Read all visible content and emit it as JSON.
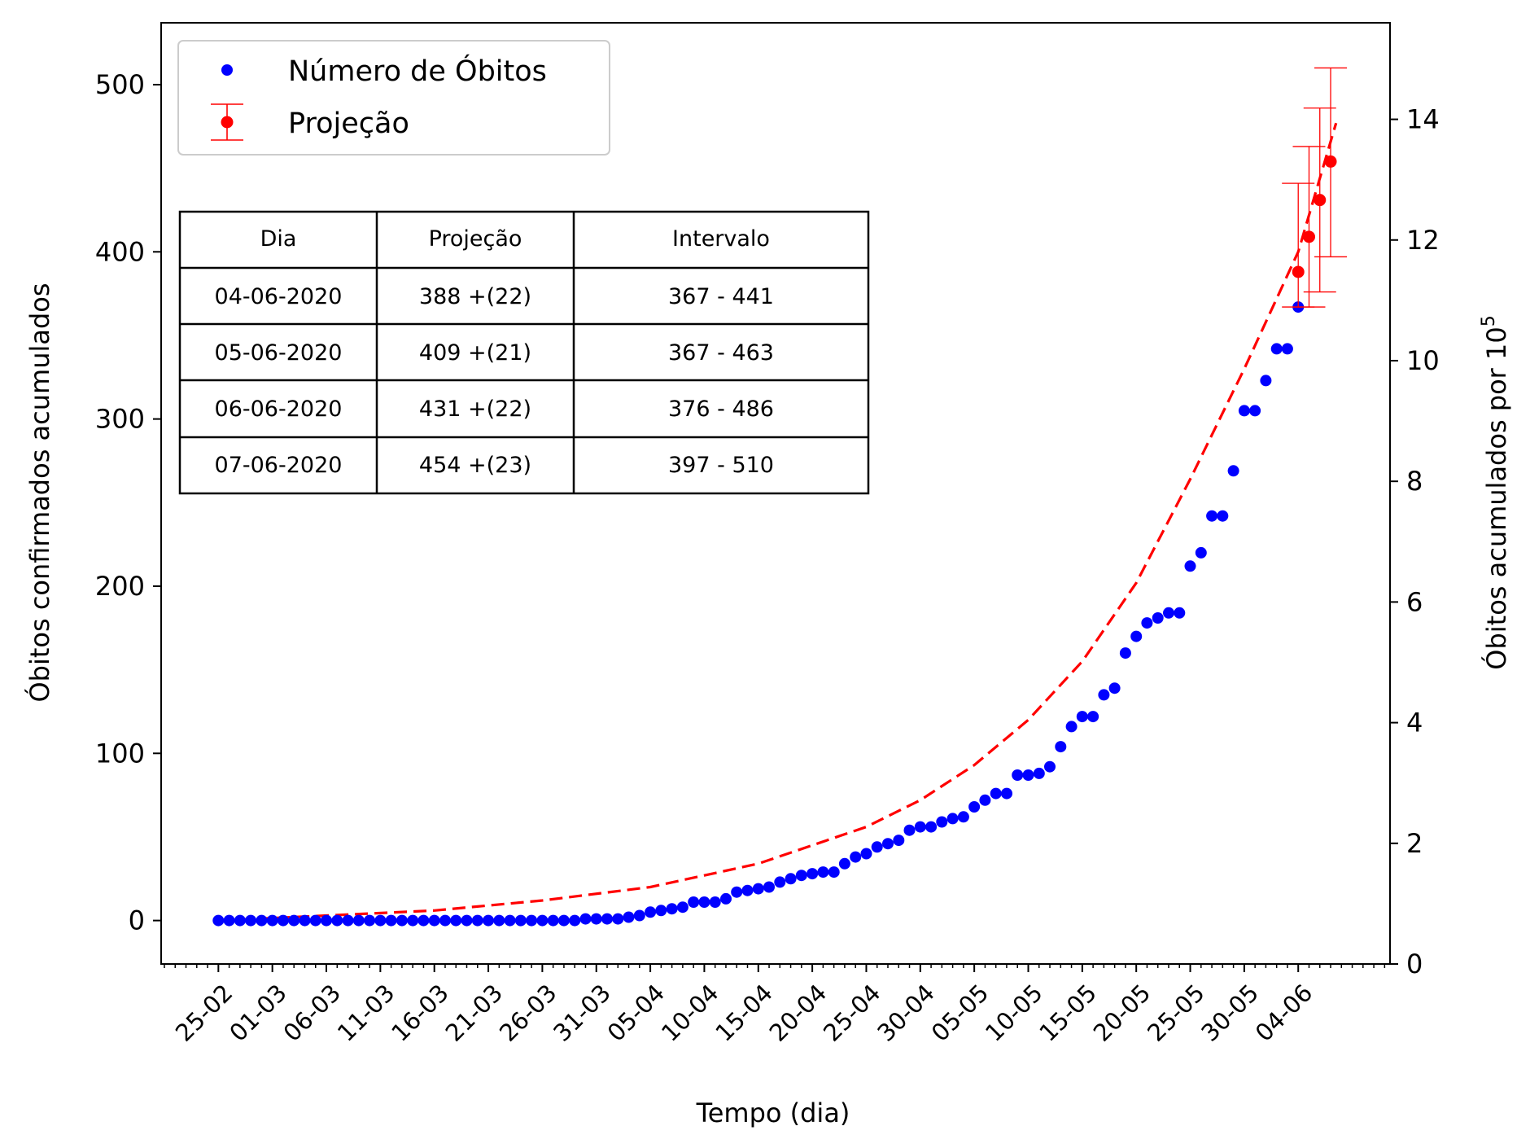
{
  "chart_data": {
    "type": "scatter",
    "xlabel": "Tempo (dia)",
    "ylabel": "Óbitos confirmados acumulados",
    "ylabel_right": "Óbitos acumulados por 10",
    "ylabel_right_exp": "5",
    "x_start_date": "25-02",
    "xlim": [
      -5.3,
      108.5
    ],
    "ylim": [
      -26,
      537
    ],
    "ylim_right": [
      0,
      15.6
    ],
    "yticks": [
      0,
      100,
      200,
      300,
      400,
      500
    ],
    "yticks_right": [
      0,
      2,
      4,
      6,
      8,
      10,
      12,
      14
    ],
    "xtick_labels": [
      "25-02",
      "01-03",
      "06-03",
      "11-03",
      "16-03",
      "21-03",
      "26-03",
      "31-03",
      "05-04",
      "10-04",
      "15-04",
      "20-04",
      "25-04",
      "30-04",
      "05-05",
      "10-05",
      "15-05",
      "20-05",
      "25-05",
      "30-05",
      "04-06"
    ],
    "grid": false,
    "legend": {
      "position": "top-left",
      "entries": [
        "Número de Óbitos",
        "Projeção"
      ]
    },
    "series": [
      {
        "name": "Número de Óbitos",
        "kind": "points",
        "color": "#0000ff",
        "values": [
          0,
          0,
          0,
          0,
          0,
          0,
          0,
          0,
          0,
          0,
          0,
          0,
          0,
          0,
          0,
          0,
          0,
          0,
          0,
          0,
          0,
          0,
          0,
          0,
          0,
          0,
          0,
          0,
          0,
          0,
          0,
          0,
          0,
          0,
          1,
          1,
          1,
          1,
          2,
          3,
          5,
          6,
          7,
          8,
          11,
          11,
          11,
          13,
          17,
          18,
          19,
          20,
          23,
          25,
          27,
          28,
          29,
          29,
          34,
          38,
          40,
          44,
          46,
          48,
          54,
          56,
          56,
          59,
          61,
          62,
          68,
          72,
          76,
          76,
          87,
          87,
          88,
          92,
          104,
          116,
          122,
          122,
          135,
          139,
          160,
          170,
          178,
          181,
          184,
          184,
          212,
          220,
          242,
          242,
          269,
          305,
          305,
          323,
          342,
          342,
          367
        ]
      },
      {
        "name": "Projeção",
        "kind": "errorbar",
        "color": "#ff0000",
        "x": [
          100,
          101,
          102,
          103
        ],
        "values": [
          388,
          409,
          431,
          454
        ],
        "lower": [
          367,
          367,
          376,
          397
        ],
        "upper": [
          441,
          463,
          486,
          510
        ]
      },
      {
        "name": "",
        "kind": "fit-curve",
        "color": "#ff0000",
        "style": "dashed",
        "x": [
          0,
          10,
          20,
          30,
          40,
          50,
          60,
          65,
          70,
          75,
          80,
          85,
          90,
          95,
          100,
          103.5
        ],
        "values": [
          0,
          3,
          6,
          12,
          20,
          34,
          56,
          72,
          93,
          120,
          155,
          202,
          264,
          330,
          400,
          477
        ]
      }
    ],
    "table": {
      "headers": [
        "Dia",
        "Projeção",
        "Intervalo"
      ],
      "rows": [
        [
          "04-06-2020",
          "388 +(22)",
          "367 - 441"
        ],
        [
          "05-06-2020",
          "409 +(21)",
          "367 - 463"
        ],
        [
          "06-06-2020",
          "431 +(22)",
          "376 - 486"
        ],
        [
          "07-06-2020",
          "454 +(23)",
          "397 - 510"
        ]
      ]
    }
  }
}
